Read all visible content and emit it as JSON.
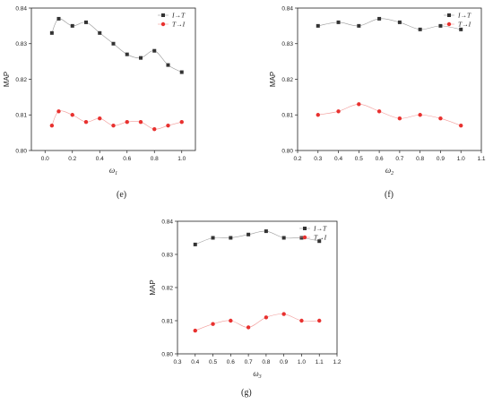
{
  "captions": [
    "(e)",
    "(f)",
    "(g)"
  ],
  "chart_data": [
    {
      "type": "line",
      "xlabel": "ω",
      "xlabel_sub": "1",
      "ylabel": "MAP",
      "xlim": [
        -0.1,
        1.1
      ],
      "ylim": [
        0.8,
        0.84
      ],
      "xticks": [
        "0.0",
        "0.2",
        "0.4",
        "0.6",
        "0.8",
        "1.0"
      ],
      "xtick_values": [
        0.0,
        0.2,
        0.4,
        0.6,
        0.8,
        1.0
      ],
      "yticks": [
        "0.80",
        "0.81",
        "0.82",
        "0.83",
        "0.84"
      ],
      "ytick_values": [
        0.8,
        0.81,
        0.82,
        0.83,
        0.84
      ],
      "legend_position": "top-right",
      "series": [
        {
          "name": "I→T",
          "color": "#333333",
          "marker": "square",
          "x": [
            0.05,
            0.1,
            0.2,
            0.3,
            0.4,
            0.5,
            0.6,
            0.7,
            0.8,
            0.9,
            1.0
          ],
          "values": [
            0.833,
            0.837,
            0.835,
            0.836,
            0.833,
            0.83,
            0.827,
            0.826,
            0.828,
            0.824,
            0.822
          ]
        },
        {
          "name": "T→I",
          "color": "#e8312f",
          "marker": "circle",
          "x": [
            0.05,
            0.1,
            0.2,
            0.3,
            0.4,
            0.5,
            0.6,
            0.7,
            0.8,
            0.9,
            1.0
          ],
          "values": [
            0.807,
            0.811,
            0.81,
            0.808,
            0.809,
            0.807,
            0.808,
            0.808,
            0.806,
            0.807,
            0.808
          ]
        }
      ]
    },
    {
      "type": "line",
      "xlabel": "ω",
      "xlabel_sub": "2",
      "ylabel": "MAP",
      "xlim": [
        0.2,
        1.1
      ],
      "ylim": [
        0.8,
        0.84
      ],
      "xticks": [
        "0.2",
        "0.3",
        "0.4",
        "0.5",
        "0.6",
        "0.7",
        "0.8",
        "0.9",
        "1.0",
        "1.1"
      ],
      "xtick_values": [
        0.2,
        0.3,
        0.4,
        0.5,
        0.6,
        0.7,
        0.8,
        0.9,
        1.0,
        1.1
      ],
      "yticks": [
        "0.80",
        "0.81",
        "0.82",
        "0.83",
        "0.84"
      ],
      "ytick_values": [
        0.8,
        0.81,
        0.82,
        0.83,
        0.84
      ],
      "legend_position": "top-right",
      "series": [
        {
          "name": "I→T",
          "color": "#333333",
          "marker": "square",
          "x": [
            0.3,
            0.4,
            0.5,
            0.6,
            0.7,
            0.8,
            0.9,
            1.0
          ],
          "values": [
            0.835,
            0.836,
            0.835,
            0.837,
            0.836,
            0.834,
            0.835,
            0.834
          ]
        },
        {
          "name": "T→I",
          "color": "#e8312f",
          "marker": "circle",
          "x": [
            0.3,
            0.4,
            0.5,
            0.6,
            0.7,
            0.8,
            0.9,
            1.0
          ],
          "values": [
            0.81,
            0.811,
            0.813,
            0.811,
            0.809,
            0.81,
            0.809,
            0.807
          ]
        }
      ]
    },
    {
      "type": "line",
      "xlabel": "ω",
      "xlabel_sub": "3",
      "ylabel": "MAP",
      "xlim": [
        0.3,
        1.2
      ],
      "ylim": [
        0.8,
        0.84
      ],
      "xticks": [
        "0.3",
        "0.4",
        "0.5",
        "0.6",
        "0.7",
        "0.8",
        "0.9",
        "1.0",
        "1.1",
        "1.2"
      ],
      "xtick_values": [
        0.3,
        0.4,
        0.5,
        0.6,
        0.7,
        0.8,
        0.9,
        1.0,
        1.1,
        1.2
      ],
      "yticks": [
        "0.80",
        "0.81",
        "0.82",
        "0.83",
        "0.84"
      ],
      "ytick_values": [
        0.8,
        0.81,
        0.82,
        0.83,
        0.84
      ],
      "legend_position": "top-right",
      "series": [
        {
          "name": "I→T",
          "color": "#333333",
          "marker": "square",
          "x": [
            0.4,
            0.5,
            0.6,
            0.7,
            0.8,
            0.9,
            1.0,
            1.1
          ],
          "values": [
            0.833,
            0.835,
            0.835,
            0.836,
            0.837,
            0.835,
            0.835,
            0.834
          ]
        },
        {
          "name": "T→I",
          "color": "#e8312f",
          "marker": "circle",
          "x": [
            0.4,
            0.5,
            0.6,
            0.7,
            0.8,
            0.9,
            1.0,
            1.1
          ],
          "values": [
            0.807,
            0.809,
            0.81,
            0.808,
            0.811,
            0.812,
            0.81,
            0.81
          ]
        }
      ]
    }
  ]
}
